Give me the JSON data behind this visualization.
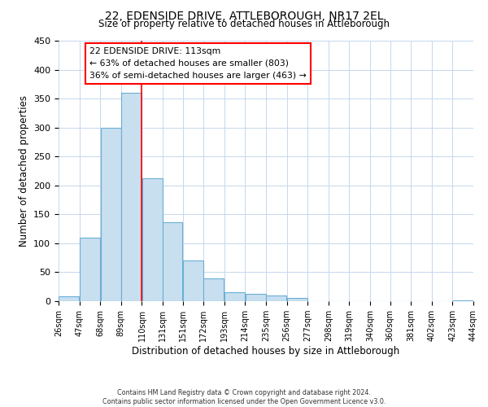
{
  "title": "22, EDENSIDE DRIVE, ATTLEBOROUGH, NR17 2EL",
  "subtitle": "Size of property relative to detached houses in Attleborough",
  "xlabel": "Distribution of detached houses by size in Attleborough",
  "ylabel": "Number of detached properties",
  "footer_lines": [
    "Contains HM Land Registry data © Crown copyright and database right 2024.",
    "Contains public sector information licensed under the Open Government Licence v3.0."
  ],
  "bin_edges": [
    26,
    47,
    68,
    89,
    110,
    131,
    151,
    172,
    193,
    214,
    235,
    256,
    277,
    298,
    319,
    340,
    360,
    381,
    402,
    423,
    444
  ],
  "bin_labels": [
    "26sqm",
    "47sqm",
    "68sqm",
    "89sqm",
    "110sqm",
    "131sqm",
    "151sqm",
    "172sqm",
    "193sqm",
    "214sqm",
    "235sqm",
    "256sqm",
    "277sqm",
    "298sqm",
    "319sqm",
    "340sqm",
    "360sqm",
    "381sqm",
    "402sqm",
    "423sqm",
    "444sqm"
  ],
  "counts": [
    8,
    110,
    300,
    360,
    213,
    137,
    70,
    39,
    15,
    13,
    10,
    6,
    0,
    0,
    0,
    0,
    0,
    0,
    0,
    2
  ],
  "bar_color": "#c8dff0",
  "bar_edge_color": "#6baed6",
  "vline_x": 110,
  "vline_color": "red",
  "annotation_box_text": "22 EDENSIDE DRIVE: 113sqm\n← 63% of detached houses are smaller (803)\n36% of semi-detached houses are larger (463) →",
  "ylim": [
    0,
    450
  ],
  "yticks": [
    0,
    50,
    100,
    150,
    200,
    250,
    300,
    350,
    400,
    450
  ],
  "background_color": "#ffffff",
  "grid_color": "#c5d8ed"
}
